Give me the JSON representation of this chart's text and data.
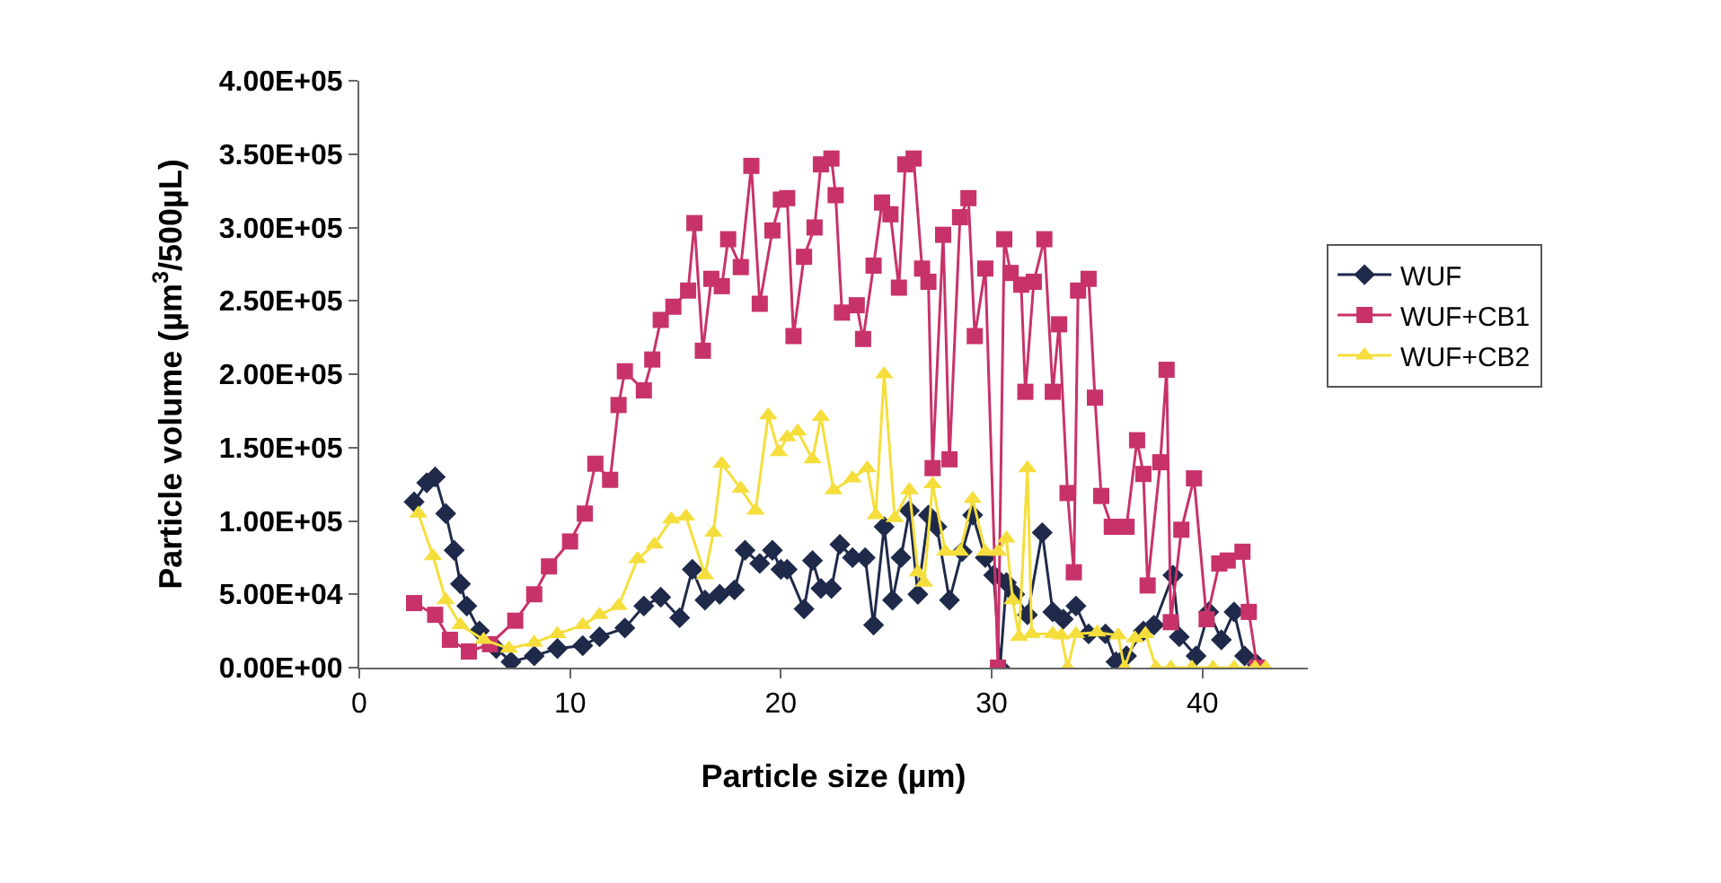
{
  "chart_data": {
    "type": "line",
    "xlabel": "Particle size (µm)",
    "ylabel": "Particle volume (µm$^{3}$/500µL)",
    "xlim": [
      0,
      45
    ],
    "xticks": [
      0,
      10,
      20,
      30,
      40
    ],
    "ylim": [
      0,
      400000
    ],
    "yticks": [
      {
        "value": 0,
        "label": "0.00E+00"
      },
      {
        "value": 50000,
        "label": "5.00E+04"
      },
      {
        "value": 100000,
        "label": "1.00E+05"
      },
      {
        "value": 150000,
        "label": "1.50E+05"
      },
      {
        "value": 200000,
        "label": "2.00E+05"
      },
      {
        "value": 250000,
        "label": "2.50E+05"
      },
      {
        "value": 300000,
        "label": "3.00E+05"
      },
      {
        "value": 350000,
        "label": "3.50E+05"
      },
      {
        "value": 400000,
        "label": "4.00E+05"
      }
    ],
    "grid": false,
    "legend": "right",
    "series": [
      {
        "name": "WUF",
        "color": "#1f2a4a",
        "marker": "diamond",
        "x": [
          2.6,
          3.2,
          3.6,
          4.1,
          4.5,
          4.8,
          5.1,
          5.7,
          6.5,
          7.2,
          8.3,
          9.4,
          10.6,
          11.4,
          12.6,
          13.5,
          14.3,
          15.2,
          15.8,
          16.4,
          17.1,
          17.8,
          18.3,
          19,
          19.6,
          20,
          20.3,
          21.1,
          21.5,
          21.9,
          22.4,
          22.8,
          23.4,
          24,
          24.4,
          24.9,
          25.3,
          25.7,
          26.1,
          26.5,
          27,
          27.4,
          28,
          28.6,
          29.1,
          29.7,
          30.1,
          30.4,
          30.7,
          31.1,
          31.7,
          32.4,
          32.9,
          33.4,
          34,
          34.6,
          35.4,
          35.9,
          36.4,
          37.2,
          37.7,
          38.6,
          38.9,
          39.7,
          40.3,
          40.9,
          41.5,
          42,
          42.6
        ],
        "values": [
          113000,
          126000,
          130000,
          105000,
          80000,
          57000,
          42000,
          25000,
          13000,
          4000,
          8000,
          13000,
          15000,
          21000,
          27000,
          42000,
          48000,
          34000,
          67000,
          46000,
          50000,
          53000,
          80000,
          71000,
          80000,
          67000,
          67000,
          40000,
          73000,
          54000,
          54000,
          84000,
          75000,
          75000,
          29000,
          96000,
          46000,
          75000,
          107000,
          50000,
          104000,
          96000,
          46000,
          79000,
          104000,
          75000,
          63000,
          0,
          58000,
          50000,
          36000,
          92000,
          38000,
          33000,
          42000,
          23000,
          23000,
          4000,
          8000,
          25000,
          29000,
          63000,
          21000,
          8000,
          38000,
          19000,
          38000,
          8000,
          2000
        ]
      },
      {
        "name": "WUF+CB1",
        "color": "#c8326a",
        "marker": "square",
        "x": [
          2.6,
          3.6,
          4.3,
          5.2,
          6.2,
          7.4,
          8.3,
          9,
          10,
          10.7,
          11.2,
          11.9,
          12.3,
          12.6,
          13.5,
          13.9,
          14.3,
          14.9,
          15.6,
          15.9,
          16.3,
          16.7,
          17.2,
          17.5,
          18.1,
          18.6,
          19,
          19.6,
          20,
          20.3,
          20.6,
          21.1,
          21.6,
          21.9,
          22.4,
          22.6,
          22.9,
          23.6,
          23.9,
          24.4,
          24.8,
          25.2,
          25.6,
          25.9,
          26.3,
          26.7,
          27,
          27.2,
          27.7,
          28,
          28.5,
          28.9,
          29.2,
          29.7,
          30.3,
          30.6,
          30.9,
          31.4,
          31.6,
          32,
          32.5,
          32.9,
          33.2,
          33.6,
          33.9,
          34.1,
          34.6,
          34.9,
          35.2,
          35.7,
          36.4,
          36.9,
          37.2,
          37.4,
          38,
          38.3,
          38.5,
          39,
          39.6,
          40.2,
          40.8,
          41.2,
          41.9,
          42.2,
          42.6
        ],
        "values": [
          44000,
          36000,
          19000,
          11000,
          16000,
          32000,
          50000,
          69000,
          86000,
          105000,
          139000,
          128000,
          179000,
          202000,
          189000,
          210000,
          237000,
          246000,
          257000,
          303000,
          216000,
          265000,
          260000,
          292000,
          273000,
          342000,
          248000,
          298000,
          319000,
          320000,
          226000,
          280000,
          300000,
          343000,
          347000,
          322000,
          242000,
          247000,
          224000,
          274000,
          317000,
          309000,
          259000,
          343000,
          347000,
          272000,
          263000,
          136000,
          295000,
          142000,
          307000,
          320000,
          226000,
          272000,
          0,
          292000,
          269000,
          261000,
          188000,
          263000,
          292000,
          188000,
          234000,
          119000,
          65000,
          257000,
          265000,
          184000,
          117000,
          96000,
          96000,
          155000,
          132000,
          56000,
          140000,
          203000,
          31000,
          94000,
          129000,
          33000,
          71000,
          73000,
          79000,
          38000,
          0
        ]
      },
      {
        "name": "WUF+CB2",
        "color": "#f5de3c",
        "marker": "triangle",
        "x": [
          2.8,
          3.5,
          4.1,
          4.8,
          5.9,
          7.1,
          8.3,
          9.4,
          10.6,
          11.4,
          12.3,
          13.2,
          14,
          14.8,
          15.5,
          16.4,
          16.8,
          17.2,
          18.1,
          18.8,
          19.4,
          19.9,
          20.3,
          20.8,
          21.5,
          21.9,
          22.5,
          23.4,
          24.1,
          24.5,
          24.9,
          25.4,
          26.1,
          26.5,
          26.8,
          27.2,
          27.8,
          28.5,
          29.1,
          29.7,
          30.3,
          30.7,
          31,
          31.3,
          31.7,
          31.9,
          32.9,
          33.3,
          33.6,
          34,
          35,
          36,
          36.3,
          36.8,
          37.3,
          37.8,
          38.5,
          39.5,
          40.5,
          41.5,
          42.5,
          43
        ],
        "values": [
          105000,
          76000,
          46000,
          29000,
          19000,
          13000,
          17000,
          23000,
          29000,
          36000,
          42000,
          74000,
          84000,
          101000,
          103000,
          63000,
          92000,
          139000,
          122000,
          107000,
          172000,
          147000,
          157000,
          161000,
          142000,
          171000,
          121000,
          129000,
          136000,
          104000,
          200000,
          102000,
          121000,
          65000,
          58000,
          125000,
          79000,
          79000,
          115000,
          79000,
          79000,
          88000,
          46000,
          21000,
          136000,
          23000,
          23000,
          22000,
          0,
          23000,
          24000,
          22000,
          0,
          20000,
          23000,
          0,
          0,
          0,
          0,
          0,
          0,
          0
        ]
      }
    ]
  }
}
